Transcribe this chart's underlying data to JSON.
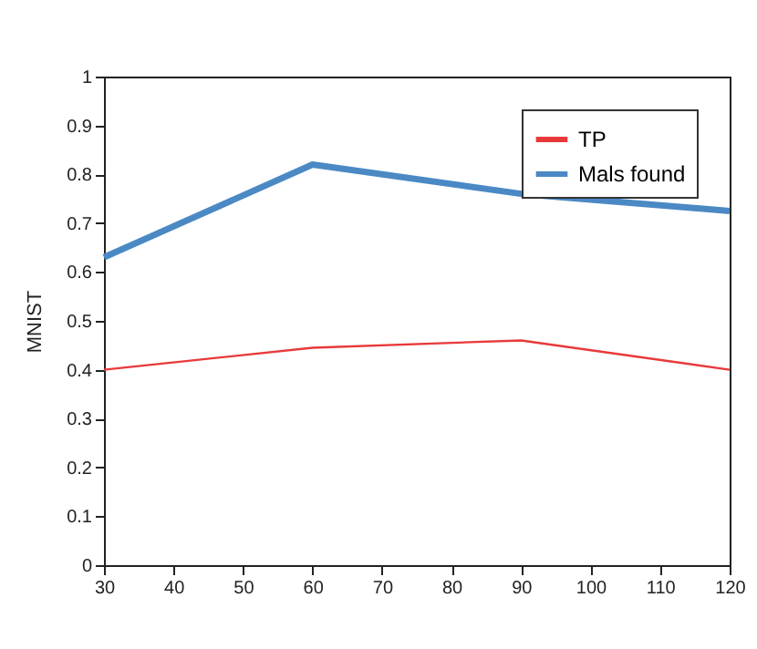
{
  "chart_data": {
    "type": "line",
    "ylabel": "MNIST",
    "x": [
      30,
      60,
      90,
      120
    ],
    "series": [
      {
        "name": "TP",
        "color": "#e8393a",
        "values": [
          0.4,
          0.445,
          0.46,
          0.4
        ]
      },
      {
        "name": "Mals found",
        "color": "#4a89c4",
        "values": [
          0.63,
          0.82,
          0.76,
          0.725
        ]
      }
    ],
    "xlim": [
      30,
      120
    ],
    "xticks": [
      30,
      40,
      50,
      60,
      70,
      80,
      90,
      100,
      110,
      120
    ],
    "ylim": [
      0,
      1
    ],
    "yticks": [
      0,
      0.1,
      0.2,
      0.3,
      0.4,
      0.5,
      0.6,
      0.7,
      0.8,
      0.9,
      1
    ],
    "legend": "top right",
    "marker": "none",
    "line_style": "solid"
  }
}
